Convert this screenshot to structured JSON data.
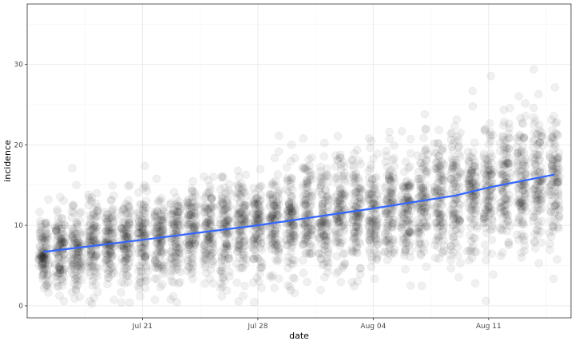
{
  "chart_data": {
    "type": "scatter",
    "title": "",
    "xlabel": "date",
    "ylabel": "incidence",
    "xlim": [
      "2020-07-14",
      "2020-08-16"
    ],
    "ylim": [
      -1.5,
      37.5
    ],
    "x_ticks": [
      "Jul 21",
      "Jul 28",
      "Aug 04",
      "Aug 11"
    ],
    "x_tick_dates": [
      "2020-07-21",
      "2020-07-28",
      "2020-08-04",
      "2020-08-11"
    ],
    "y_ticks": [
      0,
      10,
      20,
      30
    ],
    "grid": true,
    "legend": "none",
    "point_color": "#000000",
    "point_alpha": 0.06,
    "point_stroke_alpha": 0.08,
    "line_color": "#3366FF",
    "point_dates": [
      "2020-07-15",
      "2020-07-16",
      "2020-07-17",
      "2020-07-18",
      "2020-07-19",
      "2020-07-20",
      "2020-07-21",
      "2020-07-22",
      "2020-07-23",
      "2020-07-24",
      "2020-07-25",
      "2020-07-26",
      "2020-07-27",
      "2020-07-28",
      "2020-07-29",
      "2020-07-30",
      "2020-07-31",
      "2020-08-01",
      "2020-08-02",
      "2020-08-03",
      "2020-08-04",
      "2020-08-05",
      "2020-08-06",
      "2020-08-07",
      "2020-08-08",
      "2020-08-09",
      "2020-08-10",
      "2020-08-11",
      "2020-08-12",
      "2020-08-13",
      "2020-08-14",
      "2020-08-15"
    ],
    "daily_mean": [
      6.6,
      6.9,
      7.2,
      7.5,
      7.8,
      8.0,
      8.2,
      8.4,
      8.6,
      8.8,
      9.0,
      9.3,
      9.6,
      9.9,
      10.1,
      10.4,
      10.7,
      11.0,
      11.3,
      11.5,
      11.8,
      12.2,
      12.5,
      12.8,
      13.1,
      13.4,
      13.8,
      14.2,
      14.7,
      15.2,
      15.7,
      16.3
    ],
    "daily_sd": [
      2.5,
      2.6,
      2.6,
      2.7,
      2.8,
      2.8,
      2.9,
      2.9,
      3.0,
      3.0,
      3.1,
      3.1,
      3.2,
      3.2,
      3.3,
      3.3,
      3.4,
      3.4,
      3.5,
      3.5,
      3.6,
      3.6,
      3.7,
      3.7,
      3.8,
      3.9,
      3.9,
      4.0,
      4.1,
      4.2,
      4.3,
      4.4
    ],
    "points_per_day": 110,
    "trend_line": {
      "x": [
        "2020-07-15",
        "2020-07-21",
        "2020-07-28",
        "2020-08-04",
        "2020-08-09",
        "2020-08-11",
        "2020-08-15"
      ],
      "y": [
        6.7,
        8.2,
        10.0,
        12.1,
        13.7,
        14.7,
        16.3
      ]
    }
  }
}
